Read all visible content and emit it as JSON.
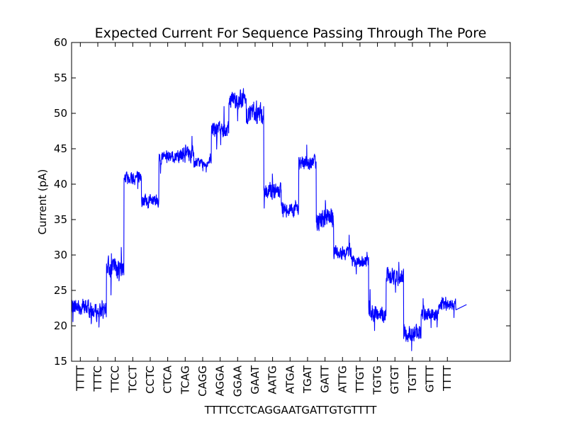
{
  "chart_data": {
    "type": "line",
    "title": "Expected Current For Sequence Passing Through The Pore",
    "xlabel": "TTTTCCTCAGGAATGATTGTGTTTT",
    "ylabel": "Current (pA)",
    "ylim": [
      15,
      60
    ],
    "yticks": [
      15,
      20,
      25,
      30,
      35,
      40,
      45,
      50,
      55,
      60
    ],
    "grid": false,
    "line_color": "#0000ff",
    "categories": [
      "TTTT",
      "TTTC",
      "TTCC",
      "TCCT",
      "CCTC",
      "CTCA",
      "TCAG",
      "CAGG",
      "AGGA",
      "GGAA",
      "GAAT",
      "AATG",
      "ATGA",
      "TGAT",
      "GATT",
      "ATTG",
      "TTGT",
      "TGTG",
      "GTGT",
      "TGTT",
      "GTTT",
      "TTTT"
    ],
    "series": [
      {
        "values": [
          22.7,
          22.0,
          28.3,
          41.0,
          37.5,
          43.8,
          44.3,
          43.0,
          47.8,
          52.0,
          50.0,
          39.0,
          36.5,
          43.0,
          35.0,
          30.5,
          29.0,
          21.8,
          27.0,
          19.0,
          21.7,
          23.0
        ],
        "noise": [
          1.0,
          1.0,
          1.2,
          0.8,
          0.8,
          0.7,
          1.0,
          0.6,
          1.0,
          1.2,
          1.3,
          1.0,
          0.9,
          0.9,
          1.3,
          0.9,
          0.7,
          1.0,
          1.1,
          1.0,
          0.9,
          0.7
        ]
      }
    ],
    "x_end_index": 22.6,
    "x_max_index": 25.1
  }
}
